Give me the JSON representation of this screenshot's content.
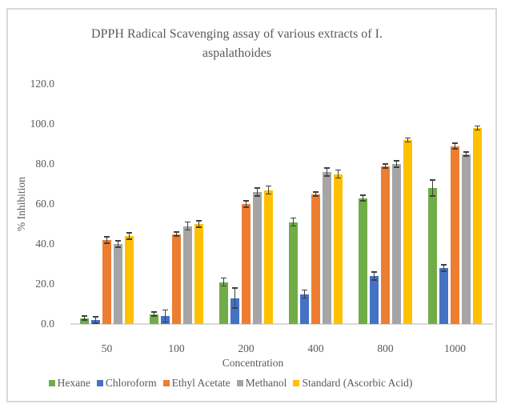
{
  "figure": {
    "background": "#ffffff",
    "frame_border_color": "#d9d9d9",
    "text_color": "#595959"
  },
  "chart_data": {
    "type": "bar",
    "title": "DPPH Radical Scavenging assay of various extracts of I. aspalathoides",
    "title_lines": [
      "DPPH Radical Scavenging assay of various extracts of I.",
      "aspalathoides"
    ],
    "xlabel": "Concentration",
    "ylabel": "% Inhibition",
    "categories": [
      "50",
      "100",
      "200",
      "400",
      "800",
      "1000"
    ],
    "series": [
      {
        "name": "Hexane",
        "color": "#70AD47",
        "values": [
          3,
          5,
          21,
          51,
          63,
          68
        ],
        "errors": [
          1,
          1,
          2,
          2,
          1.5,
          4
        ]
      },
      {
        "name": "Chloroform",
        "color": "#4472C4",
        "values": [
          2,
          4,
          13,
          15,
          24,
          28
        ],
        "errors": [
          1.5,
          3,
          5,
          2,
          2,
          1.5
        ]
      },
      {
        "name": "Ethyl Acetate",
        "color": "#ED7D31",
        "values": [
          42,
          45,
          60,
          65,
          79,
          89
        ],
        "errors": [
          1.5,
          1,
          1.5,
          1,
          1,
          1.5
        ]
      },
      {
        "name": "Methanol",
        "color": "#A5A5A5",
        "values": [
          40,
          49,
          66,
          76,
          80,
          85
        ],
        "errors": [
          1.5,
          2,
          2,
          2,
          1.5,
          1
        ]
      },
      {
        "name": "Standard (Ascorbic Acid)",
        "color": "#FFC000",
        "values": [
          44,
          50,
          67,
          75,
          92,
          98
        ],
        "errors": [
          1.5,
          1.5,
          2,
          2,
          1,
          1
        ]
      }
    ],
    "yticks": [
      "0.0",
      "20.0",
      "40.0",
      "60.0",
      "80.0",
      "100.0",
      "120.0"
    ],
    "ylim": [
      0,
      120
    ],
    "grid": false,
    "legend_position": "bottom",
    "error_bars": true,
    "error_bar_color": "#404040",
    "axis_line_color": "#d9d9d9"
  }
}
